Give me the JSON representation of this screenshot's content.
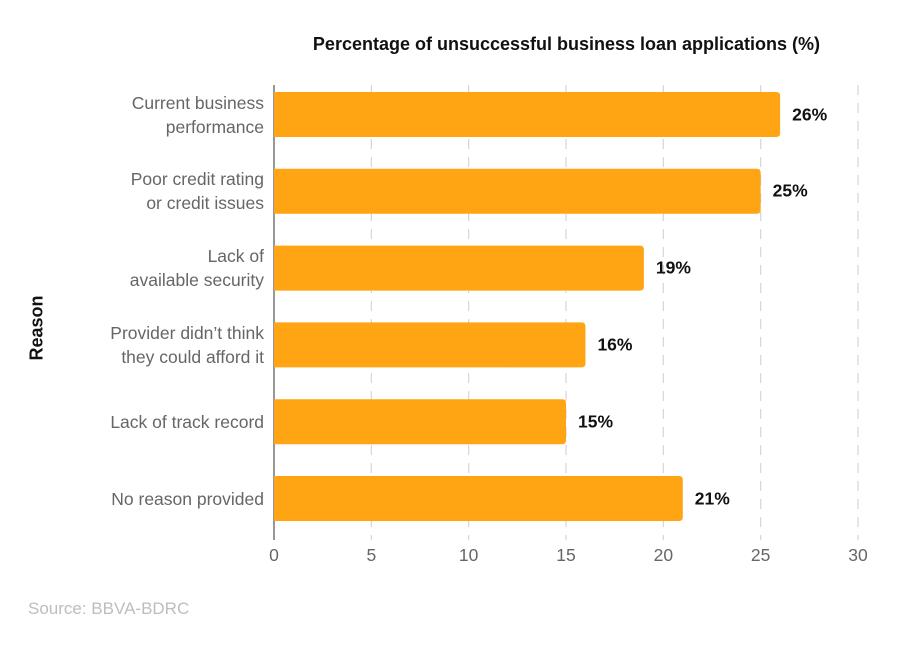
{
  "chart_data": {
    "type": "bar",
    "orientation": "horizontal",
    "title": "Percentage of unsuccessful business loan applications (%)",
    "xlabel": "",
    "ylabel": "Reason",
    "categories": [
      [
        "Current business",
        "performance"
      ],
      [
        "Poor credit rating",
        "or credit issues"
      ],
      [
        "Lack of",
        "available security"
      ],
      [
        "Provider didn’t think",
        "they could afford it"
      ],
      [
        "Lack of track record"
      ],
      [
        "No reason provided"
      ]
    ],
    "values": [
      26,
      25,
      19,
      16,
      15,
      21
    ],
    "data_labels": [
      "26%",
      "25%",
      "19%",
      "16%",
      "15%",
      "21%"
    ],
    "xlim": [
      0,
      30
    ],
    "xticks": [
      "0",
      "5",
      "10",
      "15",
      "20",
      "25",
      "30"
    ],
    "grid": "vertical dashed",
    "bar_color": "#FFA412"
  },
  "source": "Source: BBVA-BDRC"
}
